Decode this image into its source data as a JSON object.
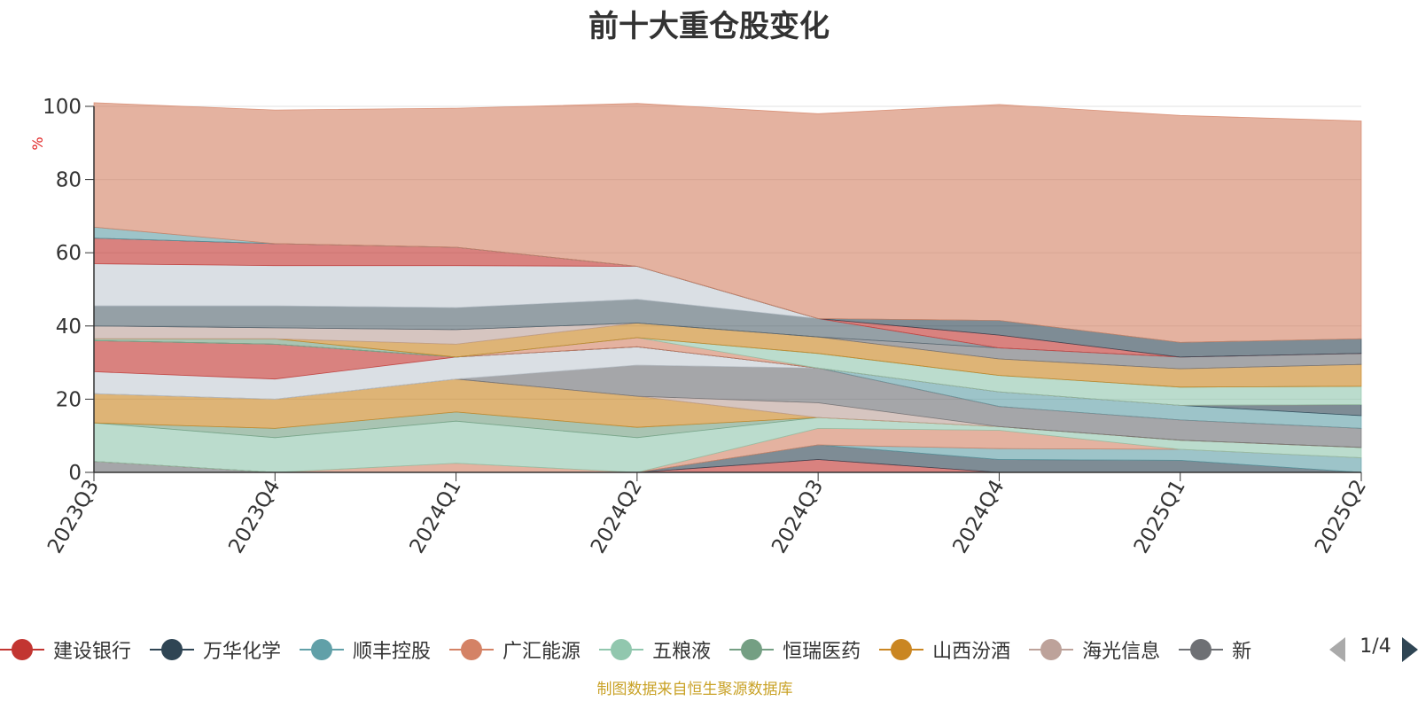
{
  "title": "前十大重仓股变化",
  "footer": "制图数据来自恒生聚源数据库",
  "pager": {
    "text": "1/4",
    "prev_icon": "arrow-left-icon",
    "next_icon": "arrow-right-icon"
  },
  "legend": [
    {
      "name": "建设银行",
      "color": "#c23531"
    },
    {
      "name": "万华化学",
      "color": "#2f4554"
    },
    {
      "name": "顺丰控股",
      "color": "#61a0a8"
    },
    {
      "name": "广汇能源",
      "color": "#d48265"
    },
    {
      "name": "五粮液",
      "color": "#91c7ae"
    },
    {
      "name": "恒瑞医药",
      "color": "#749f83"
    },
    {
      "name": "山西汾酒",
      "color": "#ca8622"
    },
    {
      "name": "海光信息",
      "color": "#bda29a"
    },
    {
      "name": "新",
      "color": "#6e7074"
    }
  ],
  "chart_data": {
    "type": "area",
    "stacked": true,
    "title": "前十大重仓股变化",
    "ylabel": "%",
    "ylim": [
      0,
      100
    ],
    "yticks": [
      0,
      20,
      40,
      60,
      80,
      100
    ],
    "categories": [
      "2023Q3",
      "2023Q4",
      "2024Q1",
      "2024Q2",
      "2024Q3",
      "2024Q4",
      "2025Q1",
      "2025Q2"
    ],
    "grid": true,
    "legend_position": "bottom",
    "series": [
      {
        "color": "#6e7074",
        "values": [
          3,
          0,
          0,
          0,
          0,
          0,
          0,
          0
        ]
      },
      {
        "color": "#c23531",
        "values": [
          0,
          0,
          0,
          0,
          3.5,
          0,
          0,
          0
        ]
      },
      {
        "color": "#2f4554",
        "values": [
          0,
          0,
          0,
          0,
          4,
          3.5,
          3.3,
          0
        ]
      },
      {
        "color": "#61a0a8",
        "values": [
          0,
          0,
          0,
          0,
          0,
          3,
          3,
          4
        ]
      },
      {
        "color": "#d48265",
        "values": [
          0,
          0,
          2.5,
          0,
          4.5,
          5,
          0,
          0
        ]
      },
      {
        "color": "#91c7ae",
        "values": [
          10.5,
          9.5,
          11.5,
          9.5,
          3,
          1,
          2.5,
          2.8
        ]
      },
      {
        "color": "#749f83",
        "values": [
          0,
          2.5,
          2.5,
          2.8,
          0,
          0,
          0,
          0
        ]
      },
      {
        "color": "#ca8622",
        "values": [
          8,
          8,
          9,
          8.5,
          0,
          0,
          0,
          0
        ]
      },
      {
        "color": "#bda29a",
        "values": [
          0,
          0,
          0,
          0,
          4,
          0,
          0,
          0
        ]
      },
      {
        "color": "#6e7074",
        "values": [
          0,
          0,
          0,
          8.5,
          9.5,
          5.5,
          5.5,
          5.2
        ]
      },
      {
        "color": "#c4ccd3",
        "values": [
          6,
          5.5,
          6,
          5,
          0,
          0,
          0,
          0
        ]
      },
      {
        "color": "#c23531",
        "values": [
          8.5,
          9.5,
          0,
          0,
          0,
          0,
          0,
          0
        ]
      },
      {
        "color": "#61a0a8",
        "values": [
          0,
          0,
          0,
          0,
          0,
          4,
          4,
          3.5
        ]
      },
      {
        "color": "#2f4554",
        "values": [
          0,
          0,
          0,
          0,
          0,
          0,
          0,
          3
        ]
      },
      {
        "color": "#d48265",
        "values": [
          0,
          0,
          0,
          2.5,
          0,
          0,
          0,
          0
        ]
      },
      {
        "color": "#91c7ae",
        "values": [
          0,
          0,
          0,
          0,
          4,
          4.5,
          5,
          5
        ]
      },
      {
        "color": "#749f83",
        "values": [
          0.5,
          1.5,
          0,
          0,
          0,
          0,
          0,
          0
        ]
      },
      {
        "color": "#ca8622",
        "values": [
          0,
          0,
          3.5,
          4,
          4.5,
          4.5,
          5,
          6
        ]
      },
      {
        "color": "#bda29a",
        "values": [
          3.5,
          3,
          4,
          0,
          0,
          0,
          0,
          0
        ]
      },
      {
        "color": "#6e7074",
        "values": [
          0,
          0,
          0,
          0,
          0,
          3,
          3.2,
          3
        ]
      },
      {
        "color": "#546570",
        "values": [
          5.5,
          6,
          6,
          6.5,
          5,
          0,
          0,
          0
        ]
      },
      {
        "color": "#c4ccd3",
        "values": [
          11.5,
          11,
          11.5,
          9,
          0,
          0,
          0,
          0
        ]
      },
      {
        "color": "#c23531",
        "values": [
          7,
          6,
          5,
          0,
          0,
          3.5,
          0,
          0
        ]
      },
      {
        "color": "#2f4554",
        "values": [
          0,
          0,
          0,
          0,
          0,
          4,
          4,
          4
        ]
      },
      {
        "color": "#61a0a8",
        "values": [
          3,
          0,
          0,
          0,
          0,
          0,
          0,
          0
        ]
      },
      {
        "color": "#d48265",
        "values": [
          34,
          36.5,
          38,
          44.5,
          56,
          59,
          62,
          59.5
        ]
      }
    ]
  }
}
